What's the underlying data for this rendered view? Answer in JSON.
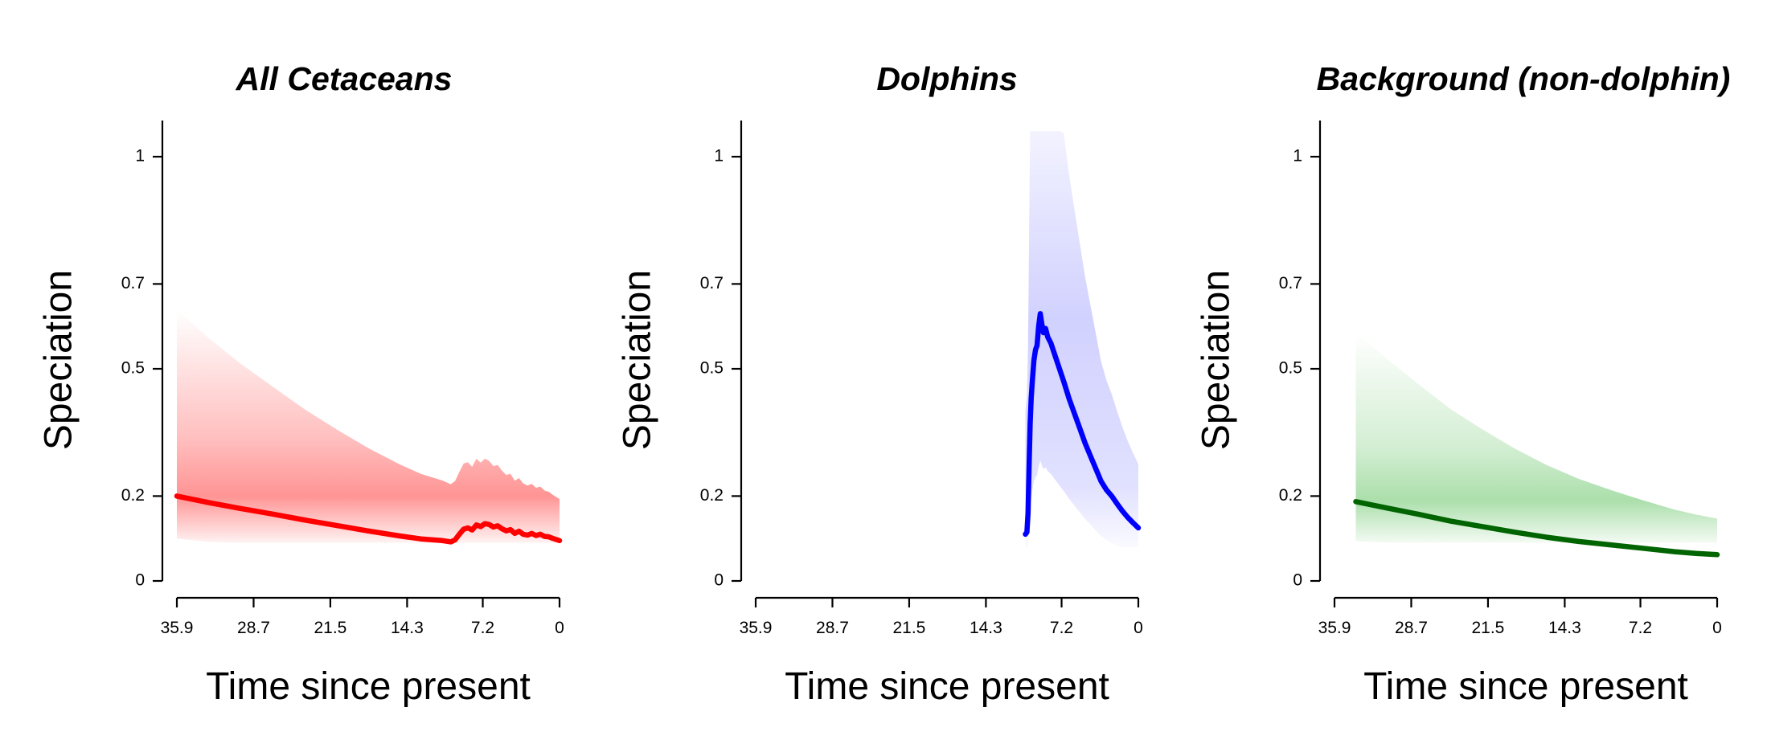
{
  "chart_data": [
    {
      "type": "line",
      "title": "All Cetaceans",
      "xlabel": "Time since present",
      "ylabel": "Speciation",
      "xlim": [
        35.9,
        0
      ],
      "ylim": [
        0,
        1
      ],
      "x_ticks": [
        "35.9",
        "28.7",
        "21.5",
        "14.3",
        "7.2",
        "0"
      ],
      "y_ticks": [
        "0",
        "0.2",
        "0.5",
        "0.7",
        "1"
      ],
      "grid": false,
      "color": "#ff0000",
      "series": [
        {
          "x": [
            35.9,
            33.0,
            30.0,
            27.0,
            24.0,
            21.0,
            18.0,
            15.0,
            13.0,
            11.0,
            10.2,
            9.8,
            9.4,
            9.0,
            8.6,
            8.2,
            7.8,
            7.4,
            7.0,
            6.6,
            6.2,
            5.8,
            5.4,
            5.0,
            4.6,
            4.2,
            3.8,
            3.4,
            3.0,
            2.6,
            2.2,
            1.8,
            1.4,
            1.0,
            0.6,
            0.0
          ],
          "y": [
            0.2,
            0.185,
            0.171,
            0.158,
            0.144,
            0.131,
            0.118,
            0.106,
            0.099,
            0.095,
            0.092,
            0.097,
            0.11,
            0.122,
            0.125,
            0.12,
            0.132,
            0.128,
            0.135,
            0.133,
            0.127,
            0.13,
            0.123,
            0.118,
            0.121,
            0.112,
            0.117,
            0.11,
            0.108,
            0.112,
            0.107,
            0.11,
            0.105,
            0.104,
            0.1,
            0.095
          ]
        }
      ]
    },
    {
      "type": "line",
      "title": "Dolphins",
      "xlabel": "Time since present",
      "ylabel": "Speciation",
      "xlim": [
        35.9,
        0
      ],
      "ylim": [
        0,
        1
      ],
      "x_ticks": [
        "35.9",
        "28.7",
        "21.5",
        "14.3",
        "7.2",
        "0"
      ],
      "y_ticks": [
        "0",
        "0.2",
        "0.5",
        "0.7",
        "1"
      ],
      "grid": false,
      "color": "#0000ff",
      "series": [
        {
          "x": [
            10.6,
            10.45,
            10.35,
            10.25,
            10.15,
            10.05,
            9.95,
            9.8,
            9.65,
            9.5,
            9.35,
            9.2,
            9.05,
            8.9,
            8.7,
            8.5,
            8.2,
            7.8,
            7.4,
            7.0,
            6.5,
            6.0,
            5.5,
            5.0,
            4.5,
            4.0,
            3.5,
            3.0,
            2.5,
            2.0,
            1.5,
            1.0,
            0.5,
            0.0
          ],
          "y": [
            0.11,
            0.115,
            0.16,
            0.27,
            0.37,
            0.43,
            0.47,
            0.52,
            0.545,
            0.555,
            0.6,
            0.63,
            0.605,
            0.585,
            0.595,
            0.575,
            0.56,
            0.53,
            0.5,
            0.47,
            0.43,
            0.395,
            0.36,
            0.325,
            0.295,
            0.265,
            0.235,
            0.215,
            0.2,
            0.182,
            0.165,
            0.15,
            0.137,
            0.125
          ]
        }
      ]
    },
    {
      "type": "line",
      "title": "Background (non-dolphin)",
      "xlabel": "Time since present",
      "ylabel": "Speciation",
      "xlim": [
        35.9,
        0
      ],
      "ylim": [
        0,
        1
      ],
      "x_ticks": [
        "35.9",
        "28.7",
        "21.5",
        "14.3",
        "7.2",
        "0"
      ],
      "y_ticks": [
        "0",
        "0.2",
        "0.5",
        "0.7",
        "1"
      ],
      "grid": false,
      "color": "#006400",
      "series": [
        {
          "x": [
            33.9,
            31.0,
            28.0,
            25.0,
            22.0,
            19.0,
            16.0,
            13.0,
            10.0,
            7.0,
            4.0,
            2.0,
            0.0
          ],
          "y": [
            0.187,
            0.172,
            0.157,
            0.141,
            0.128,
            0.115,
            0.103,
            0.093,
            0.085,
            0.077,
            0.069,
            0.065,
            0.062
          ]
        }
      ]
    }
  ]
}
